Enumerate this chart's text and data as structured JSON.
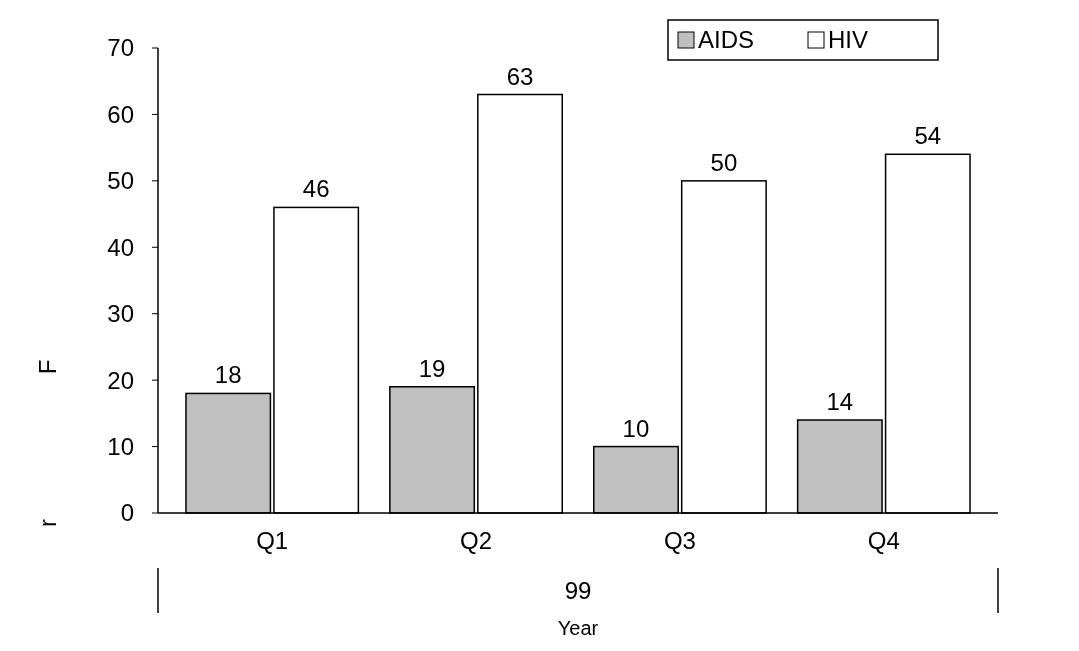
{
  "chart_data": {
    "type": "bar",
    "xlabel": "Year",
    "categories": [
      "Q1",
      "Q2",
      "Q3",
      "Q4"
    ],
    "series": [
      {
        "name": "AIDS",
        "color": "#c0c0c0",
        "values": [
          18,
          19,
          10,
          14
        ]
      },
      {
        "name": "HIV",
        "color": "#ffffff",
        "values": [
          46,
          63,
          50,
          54
        ]
      }
    ],
    "ylim": [
      0,
      70
    ],
    "yticks": [
      0,
      10,
      20,
      30,
      40,
      50,
      60,
      70
    ],
    "data_labels": true,
    "legend": "top right",
    "grid": false,
    "annotations": [
      "F",
      "r",
      "99"
    ]
  }
}
